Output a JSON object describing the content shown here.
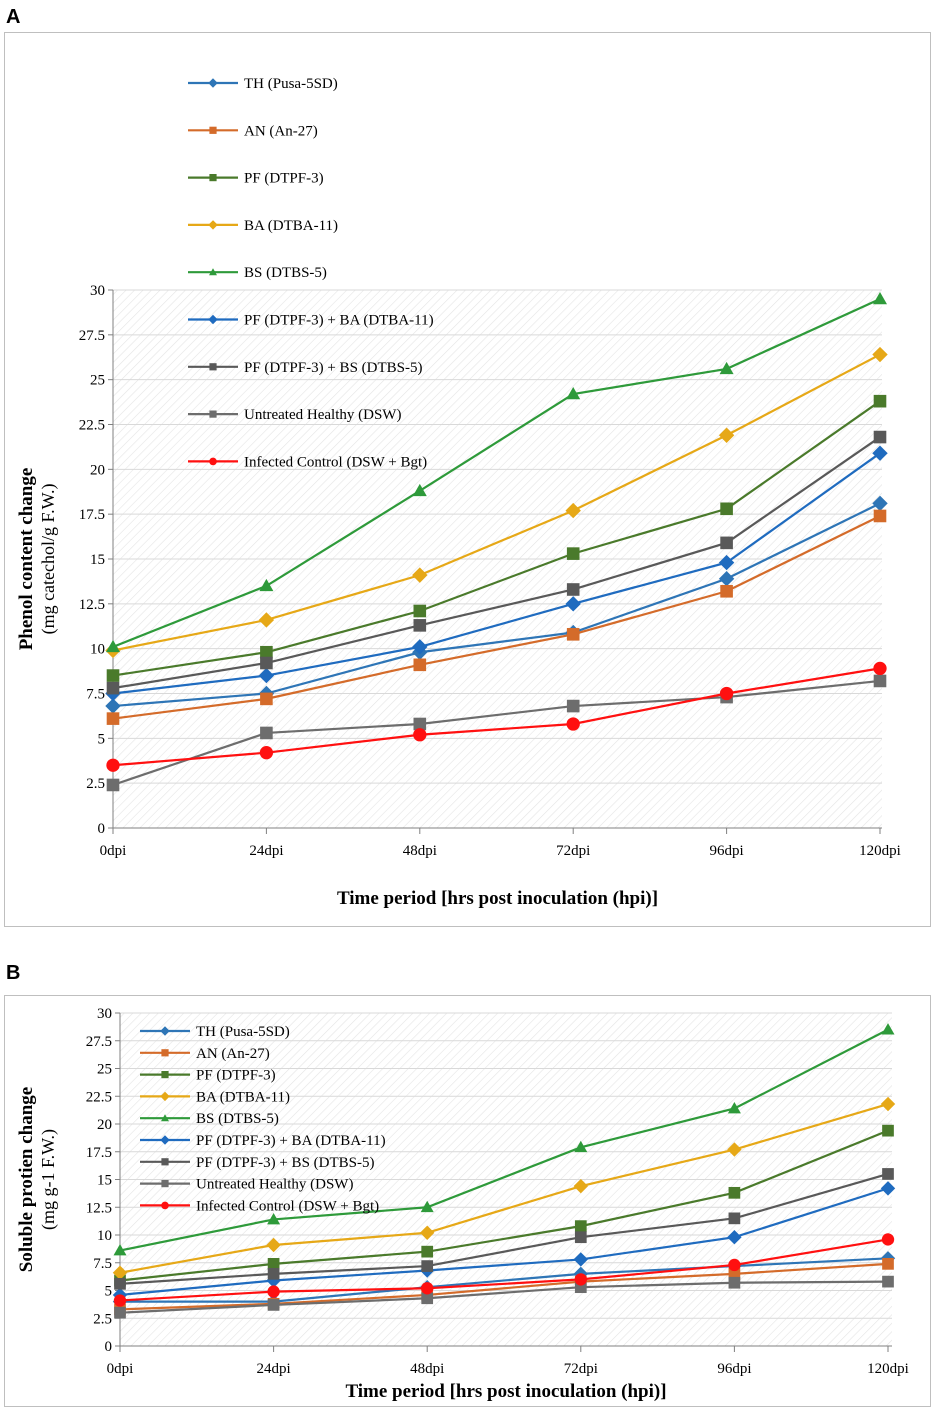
{
  "panels": [
    {
      "letter": "A",
      "chart_data": {
        "type": "line",
        "categories": [
          "0dpi",
          "24dpi",
          "48dpi",
          "72dpi",
          "96dpi",
          "120dpi"
        ],
        "xlabel": "Time period [hrs post inoculation (hpi)]",
        "ylabel_line1": "Phenol content change",
        "ylabel_line2": "(mg catechol/g F.W.)",
        "ylim": [
          0,
          30
        ],
        "yticks": [
          "0",
          "2.5",
          "5",
          "7.5",
          "10",
          "12.5",
          "15",
          "17.5",
          "20",
          "22.5",
          "25",
          "27.5",
          "30"
        ],
        "grid": "hatched plot area",
        "legend_position": "top-left",
        "series": [
          {
            "name": "TH (Pusa-5SD)",
            "color": "#2e75b6",
            "marker": "diamond",
            "values": [
              6.8,
              7.5,
              9.8,
              10.9,
              13.9,
              18.1
            ]
          },
          {
            "name": "AN (An-27)",
            "color": "#d46b2a",
            "marker": "square",
            "values": [
              6.1,
              7.2,
              9.1,
              10.8,
              13.2,
              17.4
            ]
          },
          {
            "name": "PF (DTPF-3)",
            "color": "#4a7a2b",
            "marker": "square",
            "values": [
              8.5,
              9.8,
              12.1,
              15.3,
              17.8,
              23.8
            ]
          },
          {
            "name": "BA (DTBA-11)",
            "color": "#e6a817",
            "marker": "diamond",
            "values": [
              9.9,
              11.6,
              14.1,
              17.7,
              21.9,
              26.4
            ]
          },
          {
            "name": "BS (DTBS-5)",
            "color": "#2e9a3a",
            "marker": "triangle",
            "values": [
              10.1,
              13.5,
              18.8,
              24.2,
              25.6,
              29.5
            ]
          },
          {
            "name": "PF (DTPF-3) + BA (DTBA-11)",
            "color": "#1f6bbf",
            "marker": "diamond",
            "values": [
              7.5,
              8.5,
              10.1,
              12.5,
              14.8,
              20.9
            ]
          },
          {
            "name": "PF (DTPF-3) + BS (DTBS-5)",
            "color": "#595959",
            "marker": "square",
            "values": [
              7.8,
              9.2,
              11.3,
              13.3,
              15.9,
              21.8
            ]
          },
          {
            "name": "Untreated Healthy (DSW)",
            "color": "#6d6d6d",
            "marker": "square",
            "values": [
              2.4,
              5.3,
              5.8,
              6.8,
              7.3,
              8.2
            ]
          },
          {
            "name": "Infected Control (DSW + Bgt)",
            "color": "#ff1010",
            "marker": "circle",
            "values": [
              3.5,
              4.2,
              5.2,
              5.8,
              7.5,
              8.9
            ]
          }
        ]
      }
    },
    {
      "letter": "B",
      "chart_data": {
        "type": "line",
        "categories": [
          "0dpi",
          "24dpi",
          "48dpi",
          "72dpi",
          "96dpi",
          "120dpi"
        ],
        "xlabel": "Time period [hrs post inoculation (hpi)]",
        "ylabel_line1": "Soluble protien change",
        "ylabel_line2": "(mg g-1 F.W.)",
        "ylim": [
          0,
          30
        ],
        "yticks": [
          "0",
          "2.5",
          "5",
          "7.5",
          "10",
          "12.5",
          "15",
          "17.5",
          "20",
          "22.5",
          "25",
          "27.5",
          "30"
        ],
        "grid": "hatched plot area",
        "legend_position": "top-left",
        "series": [
          {
            "name": "TH (Pusa-5SD)",
            "color": "#2e75b6",
            "marker": "diamond",
            "values": [
              4.0,
              4.0,
              5.3,
              6.5,
              7.2,
              7.9
            ]
          },
          {
            "name": "AN (An-27)",
            "color": "#d46b2a",
            "marker": "square",
            "values": [
              3.3,
              3.8,
              4.6,
              5.8,
              6.5,
              7.4
            ]
          },
          {
            "name": "PF (DTPF-3)",
            "color": "#4a7a2b",
            "marker": "square",
            "values": [
              5.9,
              7.4,
              8.5,
              10.8,
              13.8,
              19.4
            ]
          },
          {
            "name": "BA (DTBA-11)",
            "color": "#e6a817",
            "marker": "diamond",
            "values": [
              6.6,
              9.1,
              10.2,
              14.4,
              17.7,
              21.8
            ]
          },
          {
            "name": "BS (DTBS-5)",
            "color": "#2e9a3a",
            "marker": "triangle",
            "values": [
              8.6,
              11.4,
              12.5,
              17.9,
              21.4,
              28.5
            ]
          },
          {
            "name": "PF (DTPF-3) + BA (DTBA-11)",
            "color": "#1f6bbf",
            "marker": "diamond",
            "values": [
              4.6,
              5.9,
              6.8,
              7.8,
              9.8,
              14.2
            ]
          },
          {
            "name": "PF (DTPF-3) + BS (DTBS-5)",
            "color": "#595959",
            "marker": "square",
            "values": [
              5.6,
              6.5,
              7.2,
              9.8,
              11.5,
              15.5
            ]
          },
          {
            "name": "Untreated Healthy (DSW)",
            "color": "#6d6d6d",
            "marker": "square",
            "values": [
              3.0,
              3.7,
              4.3,
              5.3,
              5.7,
              5.8
            ]
          },
          {
            "name": "Infected Control (DSW + Bgt)",
            "color": "#ff1010",
            "marker": "circle",
            "values": [
              4.1,
              4.9,
              5.2,
              6.0,
              7.3,
              9.6
            ]
          }
        ]
      }
    }
  ]
}
